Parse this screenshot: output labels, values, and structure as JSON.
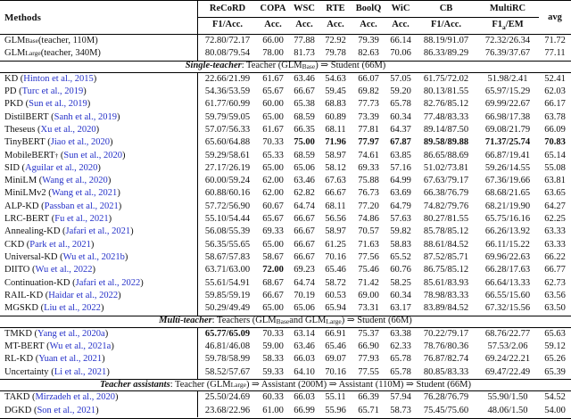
{
  "colors": {
    "citation": "#2430c8",
    "rule": "#000000",
    "text": "#111111"
  },
  "header": {
    "methods": "Methods",
    "avg": "avg",
    "columns": [
      {
        "task": "ReCoRD",
        "metric": [
          {
            "t": "F1/Acc."
          }
        ]
      },
      {
        "task": "COPA",
        "metric": [
          {
            "t": "Acc."
          }
        ]
      },
      {
        "task": "WSC",
        "metric": [
          {
            "t": "Acc."
          }
        ]
      },
      {
        "task": "RTE",
        "metric": [
          {
            "t": "Acc."
          }
        ]
      },
      {
        "task": "BoolQ",
        "metric": [
          {
            "t": "Acc."
          }
        ]
      },
      {
        "task": "WiC",
        "metric": [
          {
            "t": "Acc."
          }
        ]
      },
      {
        "task": "CB",
        "metric": [
          {
            "t": "F1/Acc."
          }
        ]
      },
      {
        "task": "MultiRC",
        "metric": [
          {
            "t": "F1"
          },
          {
            "s": "a"
          },
          {
            "t": "/EM"
          }
        ]
      }
    ]
  },
  "rows": [
    {
      "type": "data",
      "method": [
        {
          "t": "GLM"
        },
        {
          "s": "Base"
        },
        {
          "t": " (teacher, 110M)"
        }
      ],
      "cite": null,
      "values": [
        "72.80/72.17",
        "66.00",
        "77.88",
        "72.92",
        "79.39",
        "66.14",
        "88.19/91.07",
        "72.32/26.34",
        "71.72"
      ],
      "bold": []
    },
    {
      "type": "data",
      "method": [
        {
          "t": "GLM"
        },
        {
          "s": "Large"
        },
        {
          "t": " (teacher, 340M)"
        }
      ],
      "cite": null,
      "values": [
        "80.08/79.54",
        "78.00",
        "81.73",
        "79.78",
        "82.63",
        "70.06",
        "86.33/89.29",
        "76.39/37.67",
        "77.11"
      ],
      "bold": []
    },
    {
      "type": "section",
      "label": "Single-teacher",
      "rest": [
        {
          "t": ": Teacher (GLM"
        },
        {
          "s": "Base"
        },
        {
          "t": ") ⇒ Student (66M)"
        }
      ]
    },
    {
      "type": "data",
      "method": [
        {
          "t": "KD"
        }
      ],
      "cite": "Hinton et al., 2015",
      "values": [
        "22.66/21.99",
        "61.67",
        "63.46",
        "54.63",
        "66.07",
        "57.05",
        "61.75/72.02",
        "51.98/2.41",
        "52.41"
      ],
      "bold": []
    },
    {
      "type": "data",
      "method": [
        {
          "t": "PD"
        }
      ],
      "cite": "Turc et al., 2019",
      "values": [
        "54.36/53.59",
        "65.67",
        "66.67",
        "59.45",
        "69.82",
        "59.20",
        "80.13/81.55",
        "65.97/15.29",
        "62.03"
      ],
      "bold": []
    },
    {
      "type": "data",
      "method": [
        {
          "t": "PKD"
        }
      ],
      "cite": "Sun et al., 2019",
      "values": [
        "61.77/60.99",
        "60.00",
        "65.38",
        "68.83",
        "77.73",
        "65.78",
        "82.76/85.12",
        "69.99/22.67",
        "66.17"
      ],
      "bold": []
    },
    {
      "type": "data",
      "method": [
        {
          "t": "DistilBERT"
        }
      ],
      "cite": "Sanh et al., 2019",
      "values": [
        "59.79/59.05",
        "65.00",
        "68.59",
        "60.89",
        "73.39",
        "60.34",
        "77.48/83.33",
        "66.98/17.38",
        "63.78"
      ],
      "bold": []
    },
    {
      "type": "data",
      "method": [
        {
          "t": "Theseus"
        }
      ],
      "cite": "Xu et al., 2020",
      "values": [
        "57.07/56.33",
        "61.67",
        "66.35",
        "68.11",
        "77.81",
        "64.37",
        "89.14/87.50",
        "69.08/21.79",
        "66.09"
      ],
      "bold": []
    },
    {
      "type": "data",
      "method": [
        {
          "t": "TinyBERT"
        }
      ],
      "cite": "Jiao et al., 2020",
      "values": [
        "65.60/64.88",
        "70.33",
        "75.00",
        "71.96",
        "77.97",
        "67.87",
        "89.58/89.88",
        "71.37/25.74",
        "70.83"
      ],
      "bold": [
        2,
        3,
        4,
        5,
        6,
        7,
        8
      ]
    },
    {
      "type": "data",
      "method": [
        {
          "t": "MobileBERT"
        },
        {
          "p": "†"
        }
      ],
      "cite": "Sun et al., 2020",
      "values": [
        "59.29/58.61",
        "65.33",
        "68.59",
        "58.97",
        "74.61",
        "63.85",
        "86.65/88.69",
        "66.87/19.41",
        "65.14"
      ],
      "bold": []
    },
    {
      "type": "data",
      "method": [
        {
          "t": "SID"
        }
      ],
      "cite": "Aguilar et al., 2020",
      "values": [
        "27.17/26.19",
        "65.00",
        "65.06",
        "58.12",
        "69.33",
        "57.16",
        "51.02/73.81",
        "59.26/14.55",
        "55.08"
      ],
      "bold": []
    },
    {
      "type": "data",
      "method": [
        {
          "t": "MiniLM"
        }
      ],
      "cite": "Wang et al., 2020",
      "values": [
        "60.00/59.24",
        "62.00",
        "63.46",
        "67.63",
        "75.88",
        "64.99",
        "67.63/79.17",
        "67.36/19.66",
        "63.81"
      ],
      "bold": []
    },
    {
      "type": "data",
      "method": [
        {
          "t": "MiniLMv2"
        }
      ],
      "cite": "Wang et al., 2021",
      "values": [
        "60.88/60.16",
        "62.00",
        "62.82",
        "66.67",
        "76.73",
        "63.69",
        "66.38/76.79",
        "68.68/21.65",
        "63.65"
      ],
      "bold": []
    },
    {
      "type": "data",
      "method": [
        {
          "t": "ALP-KD"
        }
      ],
      "cite": "Passban et al., 2021",
      "values": [
        "57.72/56.90",
        "60.67",
        "64.74",
        "68.11",
        "77.20",
        "64.79",
        "74.82/79.76",
        "68.21/19.90",
        "64.27"
      ],
      "bold": []
    },
    {
      "type": "data",
      "method": [
        {
          "t": "LRC-BERT"
        }
      ],
      "cite": "Fu et al., 2021",
      "values": [
        "55.10/54.44",
        "65.67",
        "66.67",
        "56.56",
        "74.86",
        "57.63",
        "80.27/81.55",
        "65.75/16.16",
        "62.25"
      ],
      "bold": []
    },
    {
      "type": "data",
      "method": [
        {
          "t": "Annealing-KD"
        }
      ],
      "cite": "Jafari et al., 2021",
      "values": [
        "56.08/55.39",
        "69.33",
        "66.67",
        "58.97",
        "70.57",
        "59.82",
        "85.78/85.12",
        "66.26/13.92",
        "63.33"
      ],
      "bold": []
    },
    {
      "type": "data",
      "method": [
        {
          "t": "CKD"
        }
      ],
      "cite": "Park et al., 2021",
      "values": [
        "56.35/55.65",
        "65.00",
        "66.67",
        "61.25",
        "71.63",
        "58.83",
        "88.61/84.52",
        "66.11/15.22",
        "63.33"
      ],
      "bold": []
    },
    {
      "type": "data",
      "method": [
        {
          "t": "Universal-KD"
        }
      ],
      "cite": "Wu et al., 2021b",
      "values": [
        "58.67/57.83",
        "58.67",
        "66.67",
        "70.16",
        "77.56",
        "65.52",
        "87.52/85.71",
        "69.96/22.63",
        "66.22"
      ],
      "bold": []
    },
    {
      "type": "data",
      "method": [
        {
          "t": "DIITO"
        }
      ],
      "cite": "Wu et al., 2022",
      "values": [
        "63.71/63.00",
        "72.00",
        "69.23",
        "65.46",
        "75.46",
        "60.76",
        "86.75/85.12",
        "66.28/17.63",
        "66.77"
      ],
      "bold": [
        1
      ]
    },
    {
      "type": "data",
      "method": [
        {
          "t": "Continuation-KD"
        }
      ],
      "cite": "Jafari et al., 2022",
      "values": [
        "55.61/54.91",
        "68.67",
        "64.74",
        "58.72",
        "71.42",
        "58.25",
        "85.61/83.93",
        "66.64/13.33",
        "62.73"
      ],
      "bold": []
    },
    {
      "type": "data",
      "method": [
        {
          "t": "RAIL-KD"
        }
      ],
      "cite": "Haidar et al., 2022",
      "values": [
        "59.85/59.19",
        "66.67",
        "70.19",
        "60.53",
        "69.00",
        "60.34",
        "78.98/83.33",
        "66.55/15.60",
        "63.56"
      ],
      "bold": []
    },
    {
      "type": "data",
      "method": [
        {
          "t": "MGSKD"
        }
      ],
      "cite": "Liu et al., 2022",
      "values": [
        "50.29/49.49",
        "65.00",
        "65.06",
        "65.94",
        "73.31",
        "63.17",
        "83.89/84.52",
        "67.32/15.56",
        "63.50"
      ],
      "bold": []
    },
    {
      "type": "section",
      "label": "Multi-teacher",
      "rest": [
        {
          "t": ": Teachers (GLM"
        },
        {
          "s": "Base"
        },
        {
          "t": " and GLM"
        },
        {
          "s": "Large"
        },
        {
          "t": ") ⇒ Student (66M)"
        }
      ]
    },
    {
      "type": "data",
      "method": [
        {
          "t": "TMKD"
        }
      ],
      "cite": "Yang et al., 2020a",
      "values": [
        "65.77/65.09",
        "70.33",
        "63.14",
        "66.91",
        "75.37",
        "63.38",
        "70.22/79.17",
        "68.76/22.77",
        "65.63"
      ],
      "bold": [
        0
      ]
    },
    {
      "type": "data",
      "method": [
        {
          "t": "MT-BERT"
        }
      ],
      "cite": "Wu et al., 2021a",
      "values": [
        "46.81/46.08",
        "59.00",
        "63.46",
        "65.46",
        "66.90",
        "62.33",
        "78.76/80.36",
        "57.53/2.06",
        "59.12"
      ],
      "bold": []
    },
    {
      "type": "data",
      "method": [
        {
          "t": "RL-KD"
        }
      ],
      "cite": "Yuan et al., 2021",
      "values": [
        "59.78/58.99",
        "58.33",
        "66.03",
        "69.07",
        "77.93",
        "65.78",
        "76.87/82.74",
        "69.24/22.21",
        "65.26"
      ],
      "bold": []
    },
    {
      "type": "data",
      "method": [
        {
          "t": "Uncertainty"
        }
      ],
      "cite": "Li et al., 2021",
      "values": [
        "58.52/57.67",
        "59.33",
        "64.10",
        "70.16",
        "77.55",
        "65.78",
        "80.85/83.33",
        "69.47/22.49",
        "65.39"
      ],
      "bold": []
    },
    {
      "type": "section",
      "label": "Teacher assistants",
      "rest": [
        {
          "t": ": Teacher (GLM"
        },
        {
          "s": "Large"
        },
        {
          "t": ") ⇒ Assistant (200M) ⇒ Assistant (110M) ⇒ Student (66M)"
        }
      ]
    },
    {
      "type": "data",
      "method": [
        {
          "t": "TAKD"
        }
      ],
      "cite": "Mirzadeh et al., 2020",
      "values": [
        "25.50/24.69",
        "60.33",
        "66.03",
        "55.11",
        "66.39",
        "57.94",
        "76.28/76.79",
        "55.90/1.50",
        "54.52"
      ],
      "bold": []
    },
    {
      "type": "data",
      "method": [
        {
          "t": "DGKD"
        }
      ],
      "cite": "Son et al., 2021",
      "values": [
        "23.68/22.96",
        "61.00",
        "66.99",
        "55.96",
        "65.71",
        "58.73",
        "75.45/75.60",
        "48.06/1.50",
        "54.00"
      ],
      "bold": []
    }
  ]
}
